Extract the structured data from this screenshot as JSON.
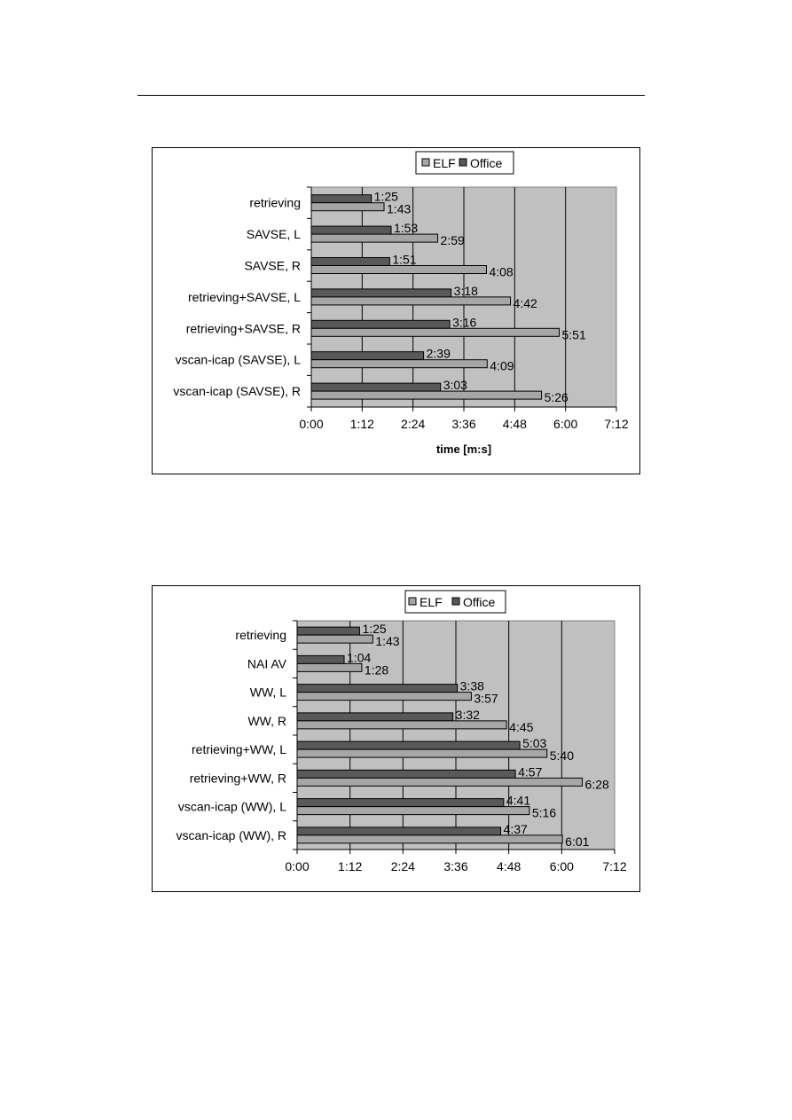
{
  "colors": {
    "elf": "#a6a6a6",
    "office": "#595959",
    "plot_bg": "#c0c0c0"
  },
  "chart_data": [
    {
      "type": "bar",
      "orientation": "horizontal",
      "title": "",
      "xlabel": "time [m:s]",
      "ylabel": "",
      "xlim_seconds": [
        0,
        432
      ],
      "x_ticks": [
        "0:00",
        "1:12",
        "2:24",
        "3:36",
        "4:48",
        "6:00",
        "7:12"
      ],
      "legend": {
        "placement": "top",
        "entries": [
          "ELF",
          "Office"
        ]
      },
      "grid": true,
      "categories": [
        "retrieving",
        "SAVSE, L",
        "SAVSE, R",
        "retrieving+SAVSE, L",
        "retrieving+SAVSE, R",
        "vscan-icap (SAVSE), L",
        "vscan-icap (SAVSE), R"
      ],
      "series": [
        {
          "name": "ELF",
          "values": [
            103,
            179,
            248,
            282,
            351,
            249,
            326
          ],
          "labels": [
            "1:43",
            "2:59",
            "4:08",
            "4:42",
            "5:51",
            "4:09",
            "5:26"
          ]
        },
        {
          "name": "Office",
          "values": [
            85,
            113,
            111,
            198,
            196,
            159,
            183
          ],
          "labels": [
            "1:25",
            "1:53",
            "1:51",
            "3:18",
            "3:16",
            "2:39",
            "3:03"
          ]
        }
      ]
    },
    {
      "type": "bar",
      "orientation": "horizontal",
      "title": "",
      "xlabel": "",
      "ylabel": "",
      "xlim_seconds": [
        0,
        432
      ],
      "x_ticks": [
        "0:00",
        "1:12",
        "2:24",
        "3:36",
        "4:48",
        "6:00",
        "7:12"
      ],
      "legend": {
        "placement": "top",
        "entries": [
          "ELF",
          "Office"
        ]
      },
      "grid": true,
      "categories": [
        "retrieving",
        "NAI AV",
        "WW, L",
        "WW, R",
        "retrieving+WW, L",
        "retrieving+WW, R",
        "vscan-icap (WW), L",
        "vscan-icap (WW), R"
      ],
      "series": [
        {
          "name": "ELF",
          "values": [
            103,
            88,
            237,
            285,
            340,
            388,
            316,
            361
          ],
          "labels": [
            "1:43",
            "1:28",
            "3:57",
            "4:45",
            "5:40",
            "6:28",
            "5:16",
            "6:01"
          ]
        },
        {
          "name": "Office",
          "values": [
            85,
            64,
            218,
            212,
            303,
            297,
            281,
            277
          ],
          "labels": [
            "1:25",
            "1:04",
            "3:38",
            "3:32",
            "5:03",
            "4:57",
            "4:41",
            "4:37"
          ]
        }
      ]
    }
  ]
}
